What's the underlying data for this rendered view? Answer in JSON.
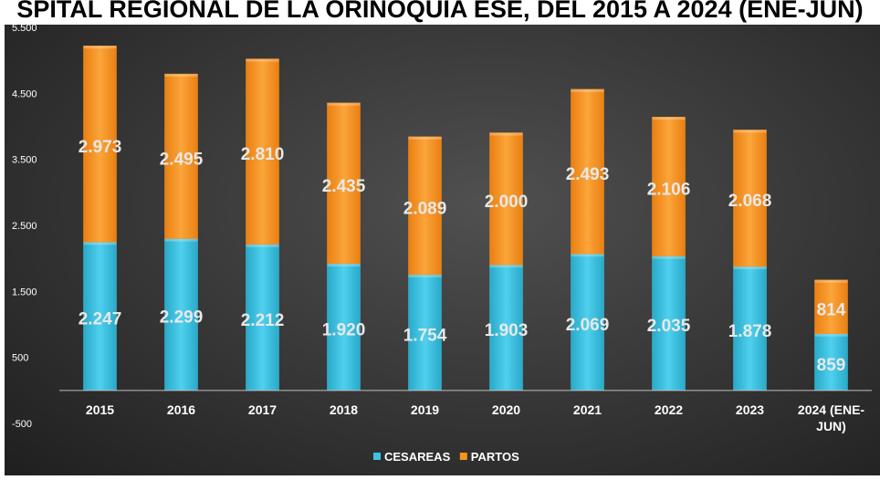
{
  "chart_data": {
    "type": "bar",
    "stacked": true,
    "title": "SPITAL REGIONAL DE LA ORINOQUIA ESE, DEL 2015 A 2024 (ENE-JUN)",
    "categories": [
      "2015",
      "2016",
      "2017",
      "2018",
      "2019",
      "2020",
      "2021",
      "2022",
      "2023",
      "2024 (ENE-JUN)"
    ],
    "series": [
      {
        "name": "CESAREAS",
        "color": "#3ec2e0",
        "values": [
          2247,
          2299,
          2212,
          1920,
          1754,
          1903,
          2069,
          2035,
          1878,
          859
        ],
        "labels": [
          "2.247",
          "2.299",
          "2.212",
          "1.920",
          "1.754",
          "1.903",
          "2.069",
          "2.035",
          "1.878",
          "859"
        ]
      },
      {
        "name": "PARTOS",
        "color": "#f7941d",
        "values": [
          2973,
          2495,
          2810,
          2435,
          2089,
          2000,
          2493,
          2106,
          2068,
          814
        ],
        "labels": [
          "2.973",
          "2.495",
          "2.810",
          "2.435",
          "2.089",
          "2.000",
          "2.493",
          "2.106",
          "2.068",
          "814"
        ]
      }
    ],
    "ylim": [
      -500,
      5500
    ],
    "yticks": [
      5500,
      4500,
      3500,
      2500,
      1500,
      500,
      -500
    ],
    "ytick_labels": [
      "5.500",
      "4.500",
      "3.500",
      "2.500",
      "1.500",
      "500",
      "-500"
    ],
    "grid": false,
    "legend": "bottom"
  }
}
